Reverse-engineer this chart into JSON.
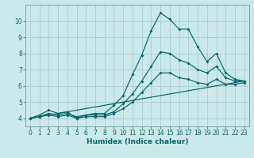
{
  "xlabel": "Humidex (Indice chaleur)",
  "background_color": "#cce9e9",
  "grid_color": "#aacccc",
  "line_color": "#006666",
  "spine_color": "#669999",
  "xlim": [
    -0.5,
    23.5
  ],
  "ylim": [
    3.5,
    11.0
  ],
  "xticks": [
    0,
    1,
    2,
    3,
    4,
    5,
    6,
    7,
    8,
    9,
    10,
    11,
    12,
    13,
    14,
    15,
    16,
    17,
    18,
    19,
    20,
    21,
    22,
    23
  ],
  "yticks": [
    4,
    5,
    6,
    7,
    8,
    9,
    10
  ],
  "curves": [
    {
      "x": [
        0,
        1,
        2,
        3,
        4,
        5,
        6,
        7,
        8,
        9,
        10,
        11,
        12,
        13,
        14,
        15,
        16,
        17,
        18,
        19,
        20,
        21,
        22,
        23
      ],
      "y": [
        4.0,
        4.2,
        4.5,
        4.3,
        4.4,
        4.0,
        4.2,
        4.3,
        4.3,
        4.8,
        5.4,
        6.7,
        7.9,
        9.4,
        10.5,
        10.1,
        9.5,
        9.5,
        8.4,
        7.5,
        8.0,
        6.8,
        6.4,
        6.3
      ]
    },
    {
      "x": [
        0,
        1,
        2,
        3,
        4,
        5,
        6,
        7,
        8,
        9,
        10,
        11,
        12,
        13,
        14,
        15,
        16,
        17,
        18,
        19,
        20,
        21,
        22,
        23
      ],
      "y": [
        4.0,
        4.1,
        4.3,
        4.2,
        4.3,
        4.1,
        4.2,
        4.2,
        4.2,
        4.4,
        4.9,
        5.5,
        6.3,
        7.2,
        8.1,
        8.0,
        7.6,
        7.4,
        7.0,
        6.8,
        7.2,
        6.5,
        6.3,
        6.3
      ]
    },
    {
      "x": [
        0,
        1,
        2,
        3,
        4,
        5,
        6,
        7,
        8,
        9,
        10,
        11,
        12,
        13,
        14,
        15,
        16,
        17,
        18,
        19,
        20,
        21,
        22,
        23
      ],
      "y": [
        4.0,
        4.1,
        4.2,
        4.1,
        4.2,
        4.0,
        4.1,
        4.1,
        4.1,
        4.3,
        4.6,
        5.0,
        5.6,
        6.2,
        6.8,
        6.8,
        6.5,
        6.4,
        6.2,
        6.1,
        6.4,
        6.1,
        6.1,
        6.2
      ]
    },
    {
      "x": [
        0,
        23
      ],
      "y": [
        4.0,
        6.3
      ]
    }
  ],
  "tick_fontsize": 5.5,
  "xlabel_fontsize": 6.5,
  "marker_size": 2.0,
  "line_width": 0.85
}
